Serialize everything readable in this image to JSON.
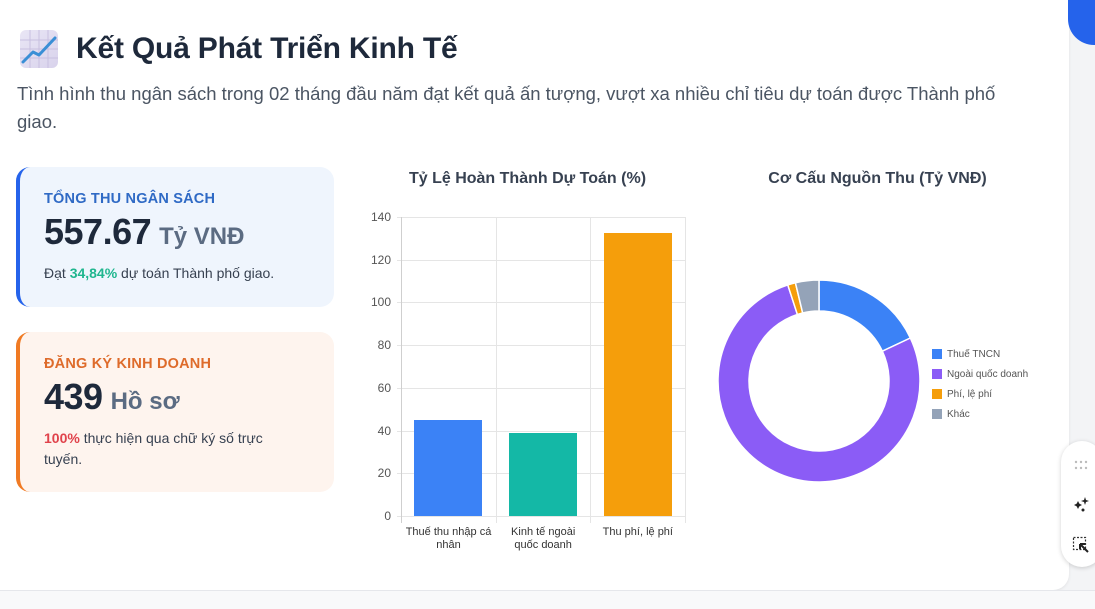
{
  "header": {
    "icon": "chart-increasing-icon",
    "title": "Kết Quả Phát Triển Kinh Tế",
    "subtitle": "Tình hình thu ngân sách trong 02 tháng đầu năm đạt kết quả ấn tượng, vượt xa nhiều chỉ tiêu dự toán được Thành phố giao."
  },
  "stats": {
    "budget": {
      "label": "TỔNG THU NGÂN SÁCH",
      "value": "557.67",
      "unit": "Tỷ VNĐ",
      "desc_prefix": "Đạt ",
      "desc_highlight": "34,84%",
      "desc_suffix": " dự toán Thành phố giao.",
      "accent": "#2563eb"
    },
    "business": {
      "label": "ĐĂNG KÝ KINH DOANH",
      "value": "439",
      "unit": "Hồ sơ",
      "desc_highlight": "100%",
      "desc_suffix": " thực hiện qua chữ ký số trực tuyến.",
      "accent": "#f07a23"
    }
  },
  "chart_data": [
    {
      "type": "bar",
      "title": "Tỷ Lệ Hoàn Thành Dự Toán (%)",
      "categories": [
        "Thuế thu nhập cá nhân",
        "Kinh tế ngoài quốc doanh",
        "Thu phí, lệ phí"
      ],
      "category_lines": [
        [
          "Thuế thu nhập cá",
          "nhân"
        ],
        [
          "Kinh tế ngoài",
          "quốc doanh"
        ],
        [
          "Thu phí, lệ phí"
        ]
      ],
      "values": [
        45,
        39,
        132.5
      ],
      "colors": [
        "#3b82f6",
        "#14b8a6",
        "#f59e0b"
      ],
      "xlabel": "",
      "ylabel": "",
      "ylim": [
        0,
        140
      ],
      "yticks": [
        0,
        20,
        40,
        60,
        80,
        100,
        120,
        140
      ],
      "grid": true,
      "legend": "none"
    },
    {
      "type": "pie",
      "variant": "doughnut",
      "title": "Cơ Cấu Nguồn Thu (Tỷ VNĐ)",
      "labels": [
        "Thuế TNCN",
        "Ngoài quốc doanh",
        "Phí, lệ phí",
        "Khác"
      ],
      "values": [
        18,
        77,
        1.25,
        3.75
      ],
      "colors": [
        "#3b82f6",
        "#8b5cf6",
        "#f59e0b",
        "#94a3b8"
      ],
      "legend_position": "right"
    }
  ],
  "toolbar": {
    "items": [
      "drag-handle-icon",
      "sparkle-icon",
      "select-region-icon"
    ]
  }
}
